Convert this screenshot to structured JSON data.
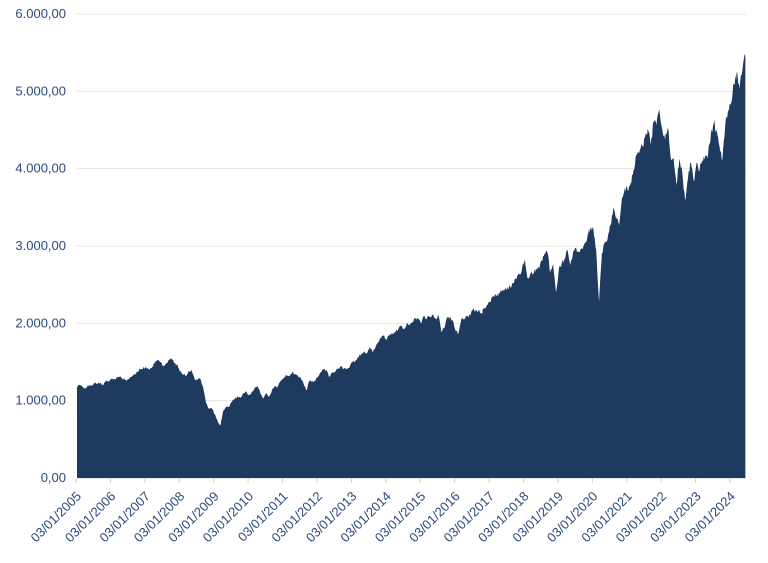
{
  "page": {
    "background": "#ffffff"
  },
  "chart_data": {
    "type": "area",
    "title": "",
    "series_name": "",
    "legend": "none",
    "grid": "horizontal",
    "x": {
      "start": "2005-01",
      "frequency": "monthly",
      "end": "2024-06"
    },
    "values": [
      1181,
      1204,
      1181,
      1157,
      1192,
      1191,
      1234,
      1220,
      1229,
      1207,
      1249,
      1248,
      1280,
      1281,
      1295,
      1311,
      1270,
      1270,
      1277,
      1304,
      1336,
      1378,
      1401,
      1418,
      1438,
      1407,
      1421,
      1482,
      1531,
      1503,
      1455,
      1474,
      1527,
      1549,
      1481,
      1468,
      1379,
      1331,
      1323,
      1386,
      1400,
      1280,
      1267,
      1283,
      1166,
      969,
      896,
      903,
      826,
      735,
      680,
      873,
      919,
      919,
      987,
      1021,
      1057,
      1036,
      1096,
      1115,
      1074,
      1104,
      1169,
      1187,
      1089,
      1031,
      1102,
      1049,
      1141,
      1183,
      1181,
      1258,
      1286,
      1327,
      1326,
      1364,
      1345,
      1321,
      1292,
      1219,
      1131,
      1253,
      1247,
      1258,
      1312,
      1366,
      1408,
      1398,
      1310,
      1362,
      1379,
      1407,
      1441,
      1412,
      1416,
      1426,
      1498,
      1515,
      1569,
      1598,
      1631,
      1606,
      1686,
      1633,
      1682,
      1757,
      1806,
      1848,
      1783,
      1859,
      1872,
      1884,
      1924,
      1960,
      1931,
      2003,
      1972,
      2018,
      2068,
      2059,
      1995,
      2105,
      2068,
      2086,
      2107,
      2063,
      2104,
      1890,
      1940,
      2079,
      2080,
      2044,
      1903,
      1870,
      2060,
      2065,
      2097,
      2099,
      2174,
      2171,
      2168,
      2126,
      2199,
      2239,
      2279,
      2364,
      2363,
      2384,
      2412,
      2423,
      2470,
      2472,
      2519,
      2575,
      2648,
      2674,
      2824,
      2590,
      2641,
      2648,
      2705,
      2718,
      2816,
      2902,
      2914,
      2660,
      2760,
      2400,
      2704,
      2784,
      2834,
      2946,
      2752,
      2942,
      2980,
      2926,
      2977,
      3038,
      3141,
      3231,
      3226,
      2954,
      2280,
      2912,
      3044,
      3100,
      3271,
      3500,
      3363,
      3270,
      3622,
      3756,
      3714,
      3811,
      3973,
      4181,
      4204,
      4298,
      4395,
      4523,
      4308,
      4605,
      4567,
      4766,
      4516,
      4374,
      4530,
      4132,
      4132,
      3785,
      4130,
      3955,
      3586,
      3872,
      4080,
      3840,
      4077,
      3970,
      4109,
      4169,
      4180,
      4450,
      4589,
      4508,
      4288,
      4117,
      4568,
      4770,
      4846,
      5096,
      5254,
      5036,
      5278,
      5460
    ],
    "ylim": [
      0,
      6000
    ],
    "y_tick_step": 1000,
    "y_tick_labels": [
      "0,00",
      "1.000,00",
      "2.000,00",
      "3.000,00",
      "4.000,00",
      "5.000,00",
      "6.000,00"
    ],
    "x_tick_labels": [
      "03/01/2005",
      "03/01/2006",
      "03/01/2007",
      "03/01/2008",
      "03/01/2009",
      "03/01/2010",
      "03/01/2011",
      "03/01/2012",
      "03/01/2013",
      "03/01/2014",
      "03/01/2015",
      "03/01/2016",
      "03/01/2017",
      "03/01/2018",
      "03/01/2019",
      "03/01/2020",
      "03/01/2021",
      "03/01/2022",
      "03/01/2023",
      "03/01/2024"
    ],
    "colors": {
      "area_fill": "#1f3a5f",
      "tick_label": "#2b4a7a",
      "gridline": "#e4e4e4",
      "axis_line": "#cfcfcf"
    }
  }
}
